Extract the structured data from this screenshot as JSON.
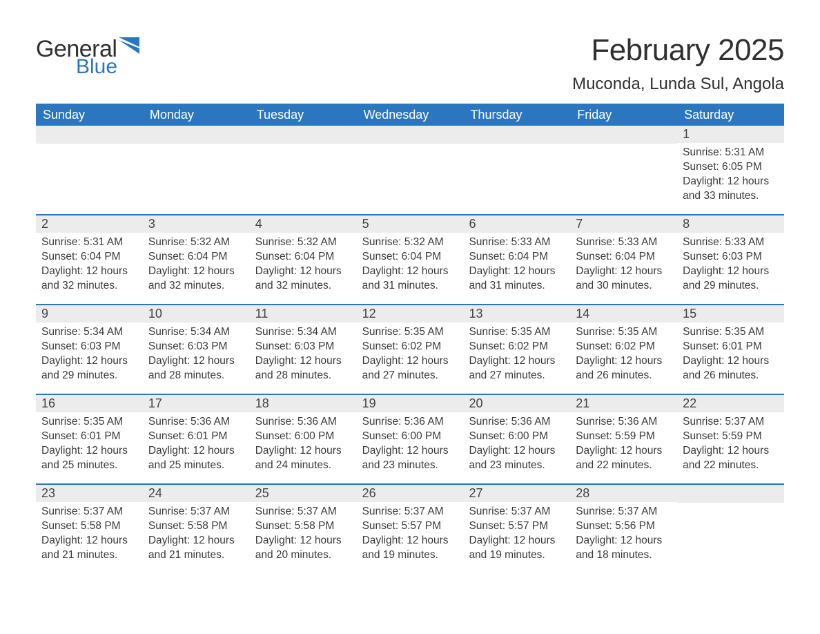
{
  "logo": {
    "text1": "General",
    "text2": "Blue",
    "flag_color": "#2a77bf"
  },
  "title": "February 2025",
  "location": "Muconda, Lunda Sul, Angola",
  "colors": {
    "header_bg": "#2a77bf",
    "header_text": "#ffffff",
    "daynum_bg": "#ececec",
    "body_text": "#3a3a3a",
    "week_border": "#2a77bf"
  },
  "typography": {
    "title_fontsize": 44,
    "location_fontsize": 24,
    "weekday_fontsize": 18,
    "daynum_fontsize": 18,
    "info_fontsize": 15.5
  },
  "weekdays": [
    "Sunday",
    "Monday",
    "Tuesday",
    "Wednesday",
    "Thursday",
    "Friday",
    "Saturday"
  ],
  "weeks": [
    [
      {
        "empty": true
      },
      {
        "empty": true
      },
      {
        "empty": true
      },
      {
        "empty": true
      },
      {
        "empty": true
      },
      {
        "empty": true
      },
      {
        "day": "1",
        "sunrise": "Sunrise: 5:31 AM",
        "sunset": "Sunset: 6:05 PM",
        "daylight": "Daylight: 12 hours and 33 minutes."
      }
    ],
    [
      {
        "day": "2",
        "sunrise": "Sunrise: 5:31 AM",
        "sunset": "Sunset: 6:04 PM",
        "daylight": "Daylight: 12 hours and 32 minutes."
      },
      {
        "day": "3",
        "sunrise": "Sunrise: 5:32 AM",
        "sunset": "Sunset: 6:04 PM",
        "daylight": "Daylight: 12 hours and 32 minutes."
      },
      {
        "day": "4",
        "sunrise": "Sunrise: 5:32 AM",
        "sunset": "Sunset: 6:04 PM",
        "daylight": "Daylight: 12 hours and 32 minutes."
      },
      {
        "day": "5",
        "sunrise": "Sunrise: 5:32 AM",
        "sunset": "Sunset: 6:04 PM",
        "daylight": "Daylight: 12 hours and 31 minutes."
      },
      {
        "day": "6",
        "sunrise": "Sunrise: 5:33 AM",
        "sunset": "Sunset: 6:04 PM",
        "daylight": "Daylight: 12 hours and 31 minutes."
      },
      {
        "day": "7",
        "sunrise": "Sunrise: 5:33 AM",
        "sunset": "Sunset: 6:04 PM",
        "daylight": "Daylight: 12 hours and 30 minutes."
      },
      {
        "day": "8",
        "sunrise": "Sunrise: 5:33 AM",
        "sunset": "Sunset: 6:03 PM",
        "daylight": "Daylight: 12 hours and 29 minutes."
      }
    ],
    [
      {
        "day": "9",
        "sunrise": "Sunrise: 5:34 AM",
        "sunset": "Sunset: 6:03 PM",
        "daylight": "Daylight: 12 hours and 29 minutes."
      },
      {
        "day": "10",
        "sunrise": "Sunrise: 5:34 AM",
        "sunset": "Sunset: 6:03 PM",
        "daylight": "Daylight: 12 hours and 28 minutes."
      },
      {
        "day": "11",
        "sunrise": "Sunrise: 5:34 AM",
        "sunset": "Sunset: 6:03 PM",
        "daylight": "Daylight: 12 hours and 28 minutes."
      },
      {
        "day": "12",
        "sunrise": "Sunrise: 5:35 AM",
        "sunset": "Sunset: 6:02 PM",
        "daylight": "Daylight: 12 hours and 27 minutes."
      },
      {
        "day": "13",
        "sunrise": "Sunrise: 5:35 AM",
        "sunset": "Sunset: 6:02 PM",
        "daylight": "Daylight: 12 hours and 27 minutes."
      },
      {
        "day": "14",
        "sunrise": "Sunrise: 5:35 AM",
        "sunset": "Sunset: 6:02 PM",
        "daylight": "Daylight: 12 hours and 26 minutes."
      },
      {
        "day": "15",
        "sunrise": "Sunrise: 5:35 AM",
        "sunset": "Sunset: 6:01 PM",
        "daylight": "Daylight: 12 hours and 26 minutes."
      }
    ],
    [
      {
        "day": "16",
        "sunrise": "Sunrise: 5:35 AM",
        "sunset": "Sunset: 6:01 PM",
        "daylight": "Daylight: 12 hours and 25 minutes."
      },
      {
        "day": "17",
        "sunrise": "Sunrise: 5:36 AM",
        "sunset": "Sunset: 6:01 PM",
        "daylight": "Daylight: 12 hours and 25 minutes."
      },
      {
        "day": "18",
        "sunrise": "Sunrise: 5:36 AM",
        "sunset": "Sunset: 6:00 PM",
        "daylight": "Daylight: 12 hours and 24 minutes."
      },
      {
        "day": "19",
        "sunrise": "Sunrise: 5:36 AM",
        "sunset": "Sunset: 6:00 PM",
        "daylight": "Daylight: 12 hours and 23 minutes."
      },
      {
        "day": "20",
        "sunrise": "Sunrise: 5:36 AM",
        "sunset": "Sunset: 6:00 PM",
        "daylight": "Daylight: 12 hours and 23 minutes."
      },
      {
        "day": "21",
        "sunrise": "Sunrise: 5:36 AM",
        "sunset": "Sunset: 5:59 PM",
        "daylight": "Daylight: 12 hours and 22 minutes."
      },
      {
        "day": "22",
        "sunrise": "Sunrise: 5:37 AM",
        "sunset": "Sunset: 5:59 PM",
        "daylight": "Daylight: 12 hours and 22 minutes."
      }
    ],
    [
      {
        "day": "23",
        "sunrise": "Sunrise: 5:37 AM",
        "sunset": "Sunset: 5:58 PM",
        "daylight": "Daylight: 12 hours and 21 minutes."
      },
      {
        "day": "24",
        "sunrise": "Sunrise: 5:37 AM",
        "sunset": "Sunset: 5:58 PM",
        "daylight": "Daylight: 12 hours and 21 minutes."
      },
      {
        "day": "25",
        "sunrise": "Sunrise: 5:37 AM",
        "sunset": "Sunset: 5:58 PM",
        "daylight": "Daylight: 12 hours and 20 minutes."
      },
      {
        "day": "26",
        "sunrise": "Sunrise: 5:37 AM",
        "sunset": "Sunset: 5:57 PM",
        "daylight": "Daylight: 12 hours and 19 minutes."
      },
      {
        "day": "27",
        "sunrise": "Sunrise: 5:37 AM",
        "sunset": "Sunset: 5:57 PM",
        "daylight": "Daylight: 12 hours and 19 minutes."
      },
      {
        "day": "28",
        "sunrise": "Sunrise: 5:37 AM",
        "sunset": "Sunset: 5:56 PM",
        "daylight": "Daylight: 12 hours and 18 minutes."
      },
      {
        "empty": true
      }
    ]
  ]
}
